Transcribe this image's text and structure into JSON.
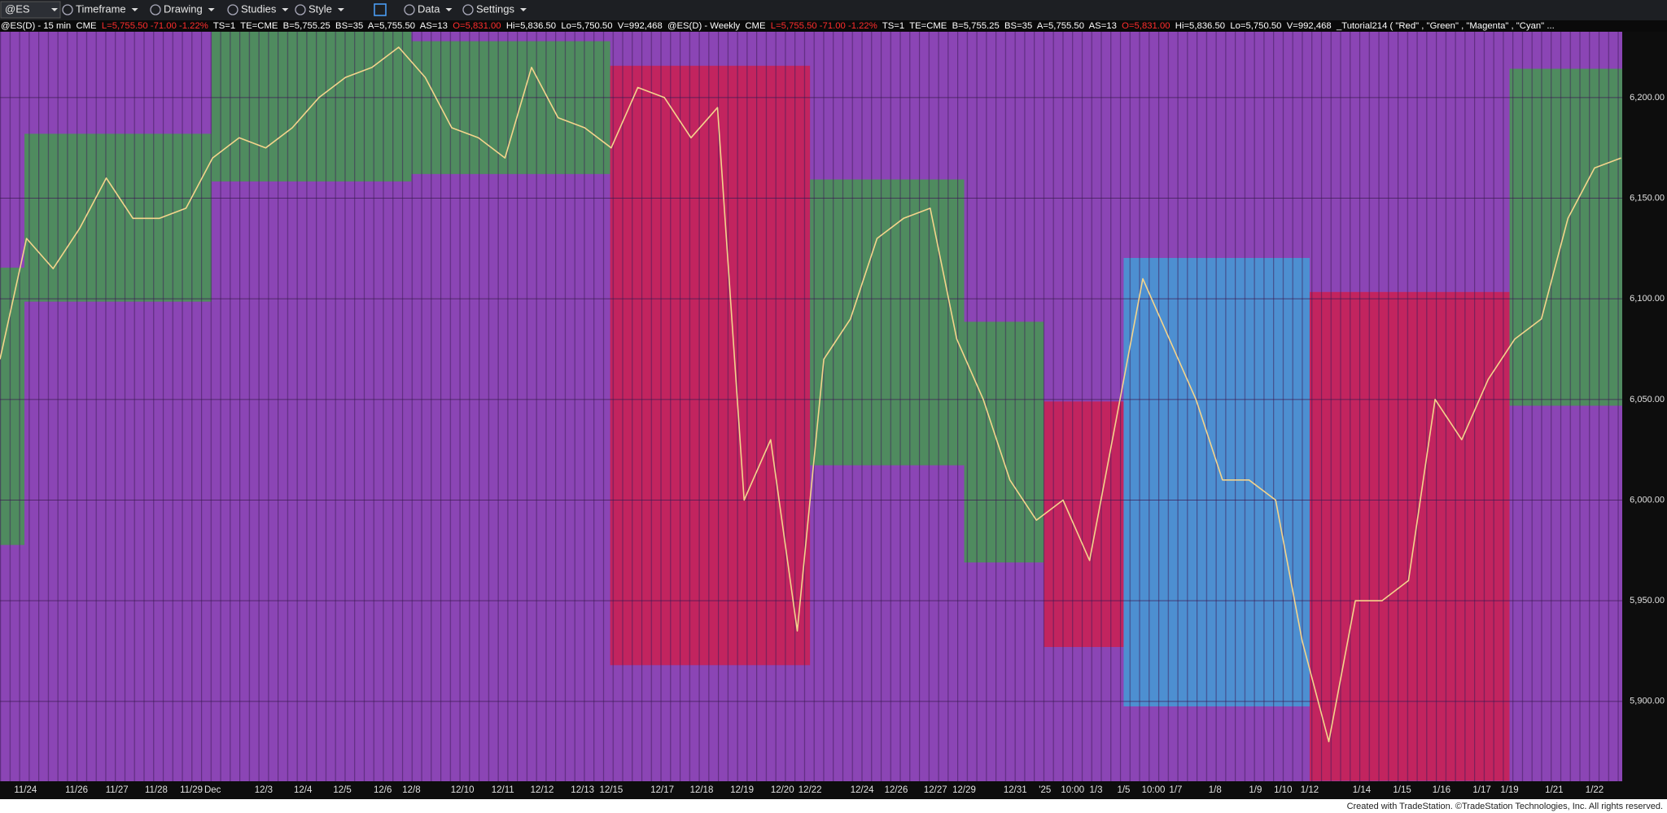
{
  "toolbar": {
    "symbol": "@ES",
    "menus": [
      "Timeframe",
      "Drawing",
      "Studies",
      "Style",
      "Data",
      "Settings"
    ]
  },
  "header": {
    "segments": [
      {
        "text": "@ES(D) - 15 min  CME  ",
        "color": "#ffffff"
      },
      {
        "text": "L=5,755.50 -71.00 -1.22%  ",
        "color": "#ff2d2d"
      },
      {
        "text": "TS=1  TE=CME  B=5,755.25  BS=35  A=5,755.50  AS=13  ",
        "color": "#ffffff"
      },
      {
        "text": "O=5,831.00  ",
        "color": "#ff2d2d"
      },
      {
        "text": "Hi=5,836.50  Lo=5,750.50  V=992,468  @ES(D) - Weekly  CME  ",
        "color": "#ffffff"
      },
      {
        "text": "L=5,755.50 -71.00 -1.22%  ",
        "color": "#ff2d2d"
      },
      {
        "text": "TS=1  TE=CME  B=5,755.25  BS=35  A=5,755.50  AS=13  ",
        "color": "#ffffff"
      },
      {
        "text": "O=5,831.00  ",
        "color": "#ff2d2d"
      },
      {
        "text": "Hi=5,836.50  Lo=5,750.50  V=992,468  _Tutorial214 ( \"Red\" , \"Green\" , \"Magenta\" , \"Cyan\" ...",
        "color": "#ffffff"
      }
    ]
  },
  "chart": {
    "ylim": [
      5860.3,
      6232.7
    ],
    "yticks": [
      {
        "value": 5900,
        "label": "5,900.00"
      },
      {
        "value": 5950,
        "label": "5,950.00"
      },
      {
        "value": 6000,
        "label": "6,000.00"
      },
      {
        "value": 6050,
        "label": "6,050.00"
      },
      {
        "value": 6100,
        "label": "6,100.00"
      },
      {
        "value": 6150,
        "label": "6,150.00"
      },
      {
        "value": 6200,
        "label": "6,200.00"
      }
    ],
    "background": "#8b45b5",
    "line_color": "#f4d48c",
    "weekly_boxes": [
      {
        "high": 6115.5,
        "low": 5977.7,
        "color": "#4f8b5f"
      },
      {
        "high": 6182,
        "low": 6098.6,
        "color": "#4f8b5f"
      },
      {
        "high": 6232.7,
        "low": 6158.3,
        "color": "#4f8b5f"
      },
      {
        "high": 6228,
        "low": 6162,
        "color": "#4f8b5f"
      },
      {
        "high": 6215.8,
        "low": 5918,
        "color": "#c2245f"
      },
      {
        "high": 6159.3,
        "low": 6017.3,
        "color": "#4f8b5f"
      },
      {
        "high": 6088.6,
        "low": 5969,
        "color": "#4f8b5f"
      },
      {
        "high": 6049,
        "low": 5927,
        "color": "#c2245f"
      },
      {
        "high": 6120.3,
        "low": 5897.5,
        "color": "#4d8fd1"
      },
      {
        "high": 6103.4,
        "low": 5860.5,
        "color": "#c2245f"
      },
      {
        "high": 6214.3,
        "low": 6046.9,
        "color": "#4f8b5f"
      }
    ],
    "price": [
      6070,
      6130,
      6115,
      6135,
      6160,
      6140,
      6140,
      6145,
      6170,
      6180,
      6175,
      6185,
      6200,
      6210,
      6215,
      6225,
      6210,
      6185,
      6180,
      6170,
      6215,
      6190,
      6185,
      6175,
      6205,
      6200,
      6180,
      6195,
      6000,
      6030,
      5935,
      6070,
      6090,
      6130,
      6140,
      6145,
      6080,
      6050,
      6010,
      5990,
      6000,
      5970,
      6040,
      6110,
      6080,
      6050,
      6010,
      6010,
      6000,
      5930,
      5880,
      5950,
      5950,
      5960,
      6050,
      6030,
      6060,
      6080,
      6090,
      6140,
      6165,
      6170
    ],
    "date_labels": [
      "11/24",
      "11/26",
      "11/27",
      "11/28",
      "11/29",
      "Dec",
      "12/3",
      "12/4",
      "12/5",
      "12/6",
      "12/8",
      "12/10",
      "12/11",
      "12/12",
      "12/13",
      "12/15",
      "12/17",
      "12/18",
      "12/19",
      "12/20",
      "12/22",
      "12/24",
      "12/26",
      "12/27",
      "12/29",
      "12/31",
      "'25",
      "10:00",
      "1/3",
      "1/5",
      "10:00",
      "1/7",
      "1/8",
      "1/9",
      "1/10",
      "1/12",
      "1/14",
      "1/15",
      "1/16",
      "1/17",
      "1/19",
      "1/21",
      "1/22"
    ]
  },
  "footer": "Created with TradeStation. ©TradeStation Technologies, Inc. All rights reserved."
}
